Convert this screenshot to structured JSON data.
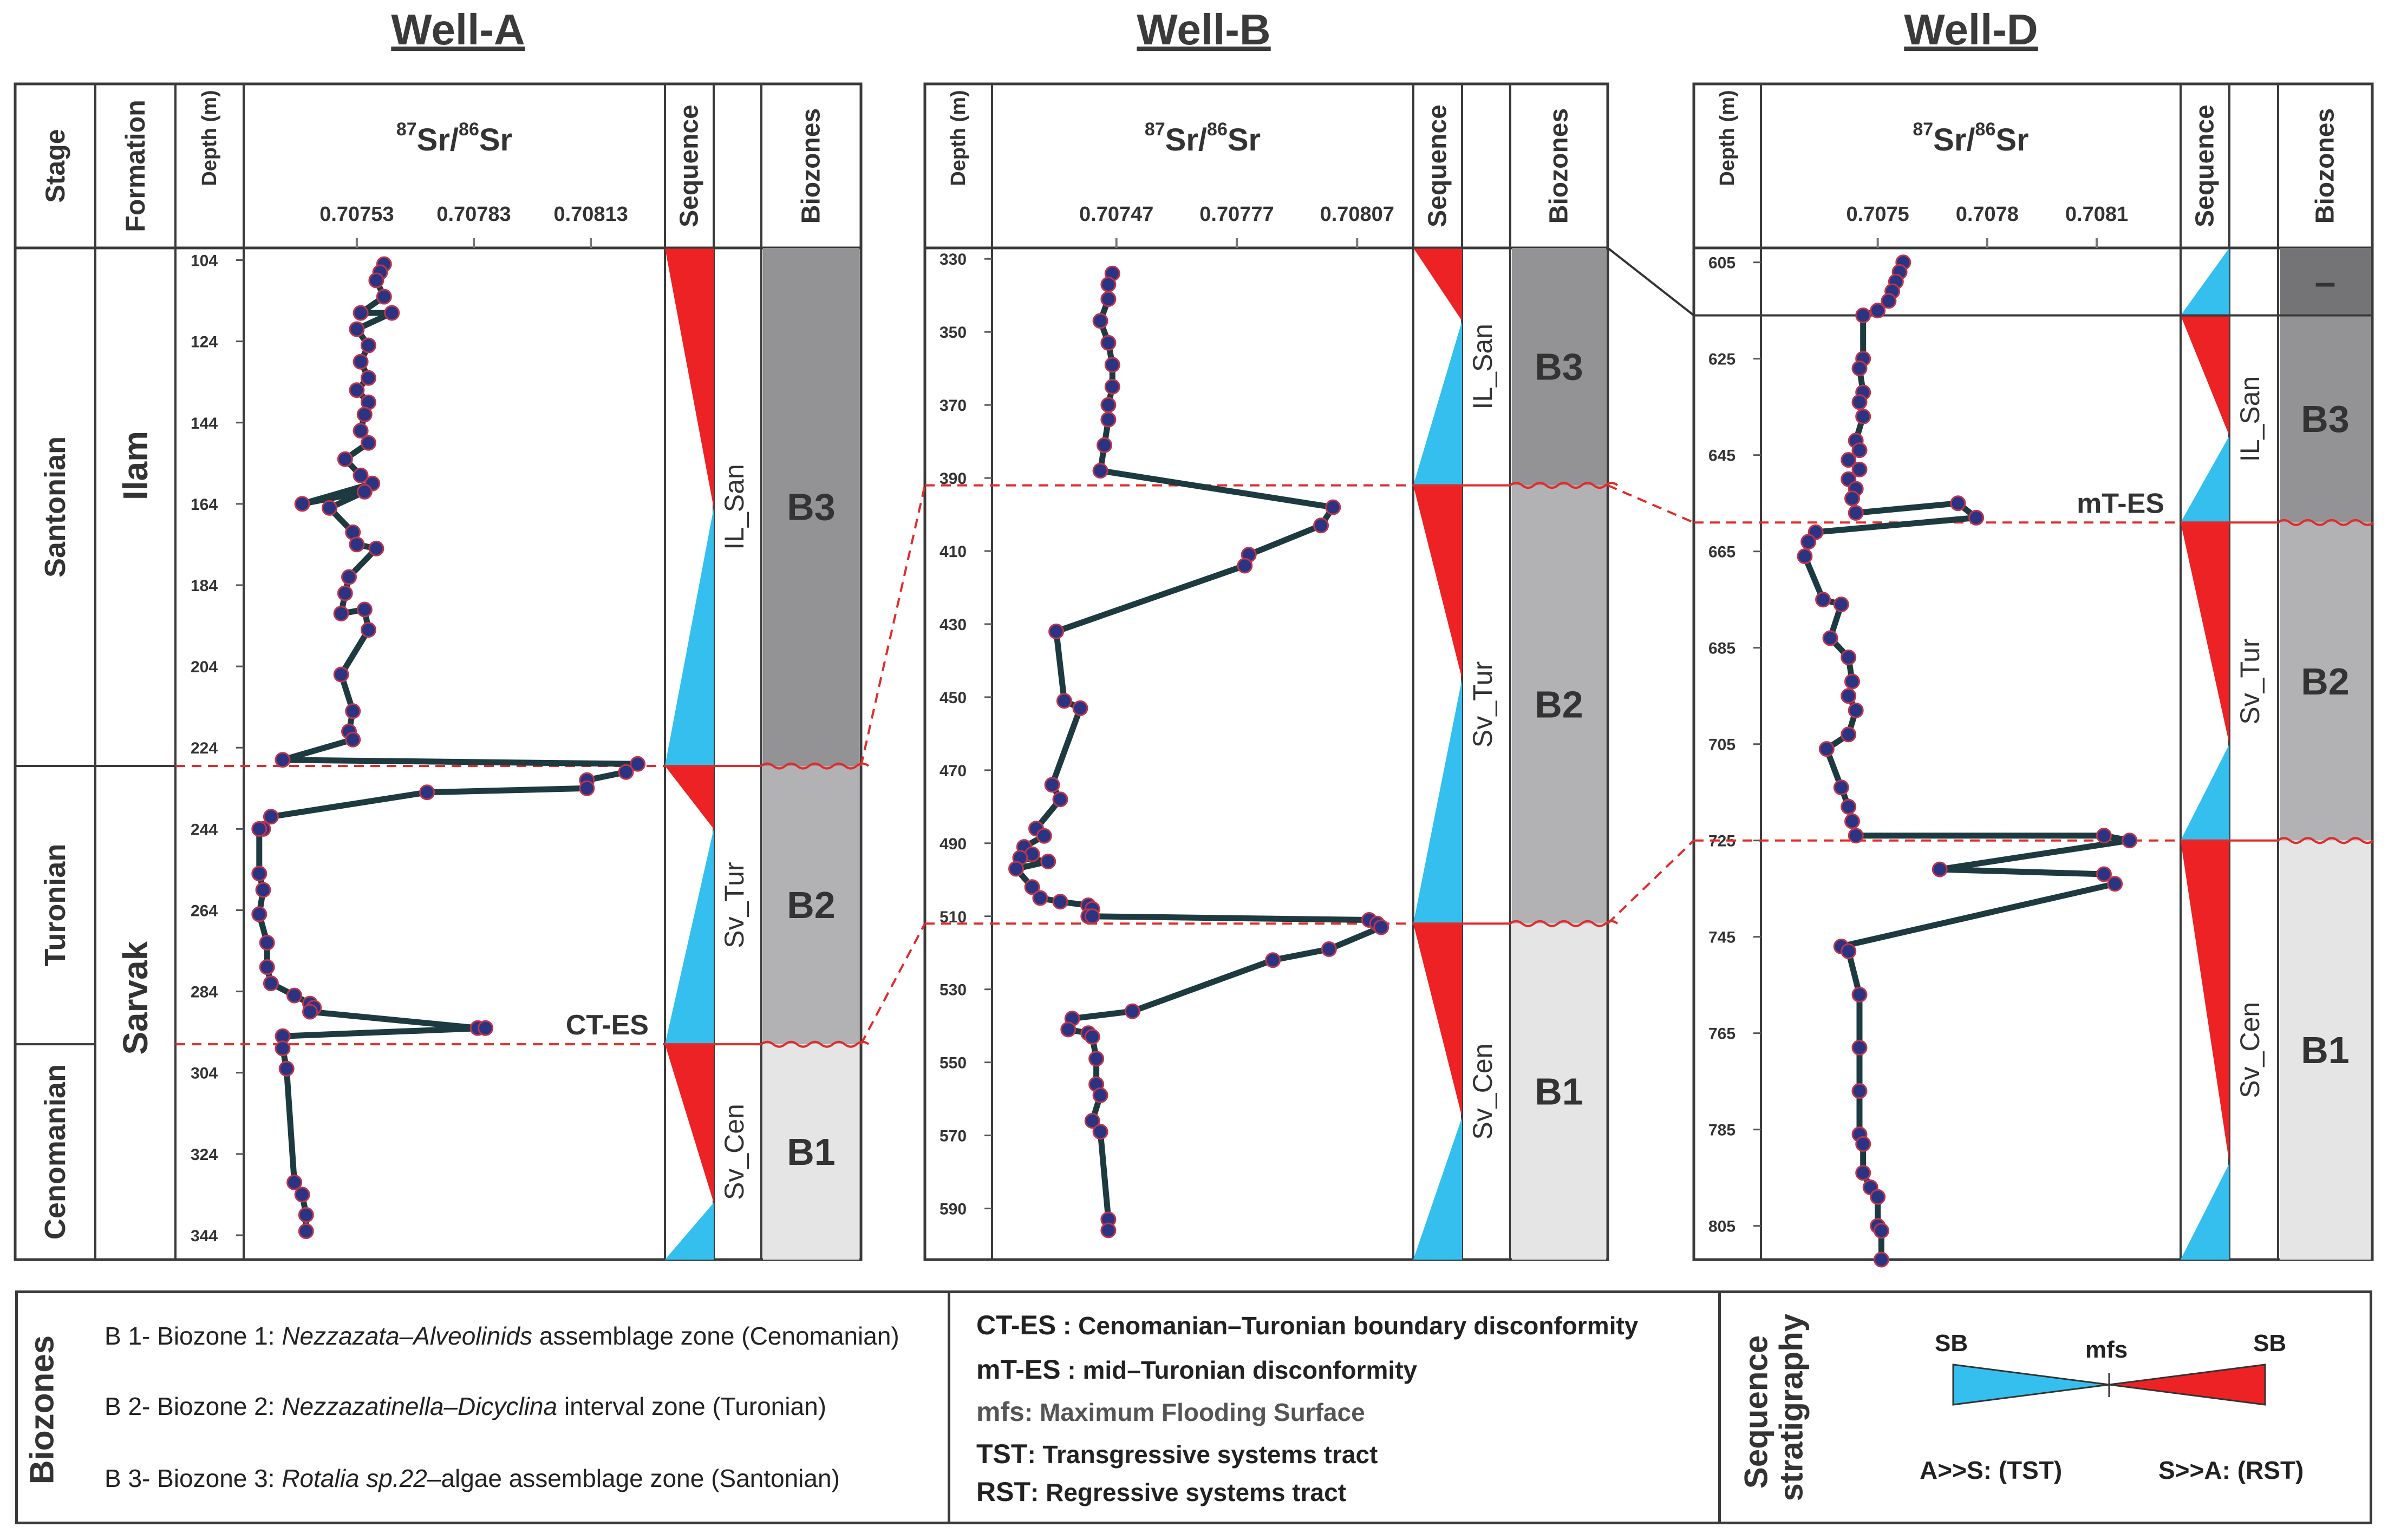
{
  "labels": {
    "stage": "Stage",
    "formation": "Formation",
    "depth": "Depth (m)",
    "sr_header": {
      "sup1": "87",
      "base1": "Sr/",
      "sup2": "86",
      "base2": "Sr"
    },
    "sequence": "Sequence",
    "biozones": "Biozones"
  },
  "wells": [
    {
      "title": "Well-A",
      "x_ticks": [
        {
          "value": 0.70753,
          "label": "0.70753"
        },
        {
          "value": 0.70783,
          "label": "0.70783"
        },
        {
          "value": 0.70813,
          "label": "0.70813"
        }
      ],
      "x_range": [
        0.70724,
        0.70832
      ],
      "depth_range": [
        101,
        350
      ],
      "depth_ticks": [
        104,
        124,
        144,
        164,
        184,
        204,
        224,
        244,
        264,
        284,
        304,
        324,
        344
      ],
      "stages": [
        {
          "label": "Santonian",
          "top": 101,
          "bottom": 228.5
        },
        {
          "label": "Turonian",
          "top": 228.5,
          "bottom": 297
        },
        {
          "label": "Cenomanian",
          "top": 297,
          "bottom": 350
        }
      ],
      "formations": [
        {
          "label": "Ilam",
          "top": 101,
          "bottom": 228.5
        },
        {
          "label": "Sarvak",
          "top": 228.5,
          "bottom": 350
        }
      ],
      "sequences": [
        {
          "label": "IL_San",
          "top": 101,
          "bottom": 228.5,
          "mfs": 165
        },
        {
          "label": "Sv_Tur",
          "top": 228.5,
          "bottom": 297,
          "mfs": 244
        },
        {
          "label": "Sv_Cen",
          "top": 297,
          "bottom": 350,
          "mfs": 336
        }
      ],
      "biozones": [
        {
          "label": "B3",
          "top": 101,
          "bottom": 228.5,
          "color": "#939396"
        },
        {
          "label": "B2",
          "top": 228.5,
          "bottom": 297,
          "color": "#b2b2b5"
        },
        {
          "label": "B1",
          "top": 297,
          "bottom": 350,
          "color": "#e5e5e5"
        }
      ],
      "boundaries": [
        228.5,
        297
      ],
      "annotations": [
        {
          "label": "CT-ES",
          "depth": 297
        }
      ]
    },
    {
      "title": "Well-B",
      "x_ticks": [
        {
          "value": 0.70747,
          "label": "0.70747"
        },
        {
          "value": 0.70777,
          "label": "0.70777"
        },
        {
          "value": 0.70807,
          "label": "0.70807"
        }
      ],
      "x_range": [
        0.70716,
        0.70821
      ],
      "depth_range": [
        327,
        604
      ],
      "depth_ticks": [
        330,
        350,
        370,
        390,
        410,
        430,
        450,
        470,
        490,
        510,
        530,
        550,
        570,
        590
      ],
      "sequences": [
        {
          "label": "IL_San",
          "top": 327,
          "bottom": 392,
          "mfs": 347
        },
        {
          "label": "Sv_Tur",
          "top": 392,
          "bottom": 512,
          "mfs": 445
        },
        {
          "label": "Sv_Cen",
          "top": 512,
          "bottom": 604,
          "mfs": 565
        }
      ],
      "biozones": [
        {
          "label": "B3",
          "top": 327,
          "bottom": 392,
          "color": "#939396"
        },
        {
          "label": "B2",
          "top": 392,
          "bottom": 512,
          "color": "#b2b2b5"
        },
        {
          "label": "B1",
          "top": 512,
          "bottom": 604,
          "color": "#e5e5e5"
        }
      ],
      "boundaries": [
        392,
        512
      ],
      "annotations": []
    },
    {
      "title": "Well-D",
      "x_ticks": [
        {
          "value": 0.7075,
          "label": "0.7075"
        },
        {
          "value": 0.7078,
          "label": "0.7078"
        },
        {
          "value": 0.7081,
          "label": "0.7081"
        }
      ],
      "x_range": [
        0.70718,
        0.70833
      ],
      "depth_range": [
        602,
        812
      ],
      "depth_ticks": [
        605,
        625,
        645,
        665,
        685,
        705,
        725,
        745,
        765,
        785,
        805
      ],
      "sequences": [
        {
          "label": "",
          "top": 602,
          "bottom": 616,
          "mfs": 602
        },
        {
          "label": "IL_San",
          "top": 616,
          "bottom": 659,
          "mfs": 641
        },
        {
          "label": "Sv_Tur",
          "top": 659,
          "bottom": 725,
          "mfs": 705
        },
        {
          "label": "Sv_Cen",
          "top": 725,
          "bottom": 812,
          "mfs": 792
        }
      ],
      "biozones": [
        {
          "label": "–",
          "top": 602,
          "bottom": 616,
          "color": "#747477"
        },
        {
          "label": "B3",
          "top": 616,
          "bottom": 659,
          "color": "#939396"
        },
        {
          "label": "B2",
          "top": 659,
          "bottom": 725,
          "color": "#b2b2b5"
        },
        {
          "label": "B1",
          "top": 725,
          "bottom": 812,
          "color": "#e5e5e5"
        }
      ],
      "boundaries": [
        659,
        725
      ],
      "annotations": [
        {
          "label": "mT-ES",
          "depth": 659
        }
      ]
    }
  ],
  "legend": {
    "biozones_title": "Biozones",
    "biozones": [
      {
        "prefix": "B 1- Biozone 1: ",
        "taxon": "Nezzazata–Alveolinids",
        "suffix": " assemblage zone (Cenomanian)"
      },
      {
        "prefix": "B 2- Biozone 2: ",
        "taxon": "Nezzazatinella–Dicyclina",
        "suffix": " interval zone (Turonian)"
      },
      {
        "prefix": "B 3- Biozone 3: ",
        "taxon": "Rotalia sp.22",
        "suffix": "–algae assemblage zone (Santonian)"
      }
    ],
    "abbreviations": [
      {
        "abbr": "CT-ES",
        "sep": " : ",
        "desc": "Cenomanian–Turonian boundary disconformity"
      },
      {
        "abbr": "mT-ES",
        "sep": " : ",
        "desc": "mid–Turonian disconformity"
      },
      {
        "abbr": "mfs",
        "sep": ": ",
        "desc": "Maximum Flooding Surface"
      },
      {
        "abbr": "TST",
        "sep": ": ",
        "desc": "Transgressive systems tract"
      },
      {
        "abbr": "RST",
        "sep": ": ",
        "desc": "Regressive systems tract"
      }
    ],
    "seq_title_1": "Sequence",
    "seq_title_2": "stratigraphy",
    "sb_left": "SB",
    "mfs": "mfs",
    "sb_right": "SB",
    "tst_label": "A>>S: (TST)",
    "rst_label": "S>>A: (RST)"
  },
  "colors": {
    "tst": "#35bfee",
    "rst": "#ec2225",
    "curve": "#1d3a40",
    "point": "#2b3383",
    "point_edge": "#c0354a",
    "boundary": "#e02c2c",
    "frame": "#3a3a3a"
  },
  "chart_data": [
    {
      "type": "line",
      "title": "Well-A",
      "series": [
        {
          "x": [
            0.7076,
            0.70759,
            0.70758,
            0.7076,
            0.70754,
            0.70762,
            0.70753,
            0.70756,
            0.70754,
            0.70756,
            0.70753,
            0.70756,
            0.70755,
            0.70754,
            0.70756,
            0.7075,
            0.70754,
            0.70757,
            0.70739,
            0.70755,
            0.70746,
            0.70752,
            0.70753,
            0.70758,
            0.70751,
            0.7075,
            0.70749,
            0.70755,
            0.70756,
            0.70749,
            0.70752,
            0.70751,
            0.70752,
            0.70734,
            0.70825,
            0.70822,
            0.70812,
            0.70812,
            0.70771,
            0.70731,
            0.70729,
            0.70728,
            0.70728,
            0.70729,
            0.70728,
            0.7073,
            0.7073,
            0.70731,
            0.70737,
            0.70741,
            0.70742,
            0.70741,
            0.70784,
            0.70786,
            0.70734,
            0.70734,
            0.70735,
            0.70737,
            0.70739,
            0.7074,
            0.7074
          ],
          "y": [
            105,
            107,
            109,
            113,
            117,
            117,
            121,
            125,
            129,
            133,
            136,
            139,
            142,
            146,
            149,
            153,
            157,
            159,
            164,
            161,
            165,
            171,
            174,
            175,
            182,
            186,
            191,
            190,
            195,
            206,
            215,
            220,
            222,
            227,
            228,
            230,
            232,
            234,
            235,
            241,
            244,
            244,
            255,
            259,
            265,
            272,
            278,
            282,
            285,
            287,
            288,
            289,
            293,
            293,
            295,
            298,
            303,
            331,
            334,
            339,
            343
          ]
        }
      ]
    },
    {
      "type": "line",
      "title": "Well-B",
      "series": [
        {
          "x": [
            0.70746,
            0.70745,
            0.70745,
            0.70743,
            0.70745,
            0.70746,
            0.70746,
            0.70745,
            0.70745,
            0.70744,
            0.70743,
            0.70801,
            0.70798,
            0.7078,
            0.70779,
            0.70732,
            0.70734,
            0.70738,
            0.70731,
            0.70733,
            0.70727,
            0.70729,
            0.70724,
            0.70726,
            0.70723,
            0.7073,
            0.70722,
            0.70726,
            0.70728,
            0.70733,
            0.7074,
            0.70741,
            0.7074,
            0.70741,
            0.7081,
            0.70812,
            0.70813,
            0.708,
            0.70786,
            0.70751,
            0.70736,
            0.70735,
            0.7074,
            0.70741,
            0.70742,
            0.70742,
            0.70743,
            0.70741,
            0.70743,
            0.70745,
            0.70745
          ],
          "y": [
            334,
            337,
            341,
            347,
            353,
            359,
            365,
            370,
            374,
            381,
            388,
            398,
            403,
            411,
            414,
            432,
            451,
            453,
            474,
            478,
            486,
            488,
            491,
            493,
            494,
            495,
            497,
            502,
            505,
            506,
            507,
            508,
            510,
            510,
            511,
            512,
            513,
            519,
            522,
            536,
            538,
            541,
            542,
            543,
            549,
            556,
            559,
            566,
            569,
            593,
            596
          ]
        }
      ]
    },
    {
      "type": "line",
      "title": "Well-D",
      "series": [
        {
          "x": [
            0.70757,
            0.70756,
            0.70755,
            0.70754,
            0.70753,
            0.7075,
            0.70746,
            0.70746,
            0.70745,
            0.70746,
            0.70745,
            0.70746,
            0.70744,
            0.70745,
            0.70742,
            0.70745,
            0.70742,
            0.70744,
            0.70743,
            0.70744,
            0.70772,
            0.70777,
            0.70733,
            0.70731,
            0.7073,
            0.70735,
            0.7074,
            0.70737,
            0.70742,
            0.70743,
            0.70742,
            0.70744,
            0.70742,
            0.70736,
            0.7074,
            0.70742,
            0.70743,
            0.70744,
            0.70812,
            0.70819,
            0.70767,
            0.70812,
            0.70815,
            0.7074,
            0.70742,
            0.70745,
            0.70745,
            0.70745,
            0.70745,
            0.70746,
            0.70746,
            0.70748,
            0.7075,
            0.7075,
            0.70751,
            0.70751
          ],
          "y": [
            605,
            607,
            609,
            611,
            613,
            615,
            616,
            625,
            627,
            632,
            634,
            637,
            642,
            644,
            646,
            648,
            650,
            652,
            654,
            657,
            655,
            658,
            661,
            663,
            666,
            675,
            676,
            683,
            687,
            692,
            695,
            698,
            703,
            706,
            714,
            718,
            721,
            724,
            724,
            725,
            731,
            732,
            734,
            747,
            748,
            757,
            768,
            777,
            786,
            788,
            794,
            797,
            799,
            805,
            806,
            812
          ]
        }
      ]
    }
  ]
}
